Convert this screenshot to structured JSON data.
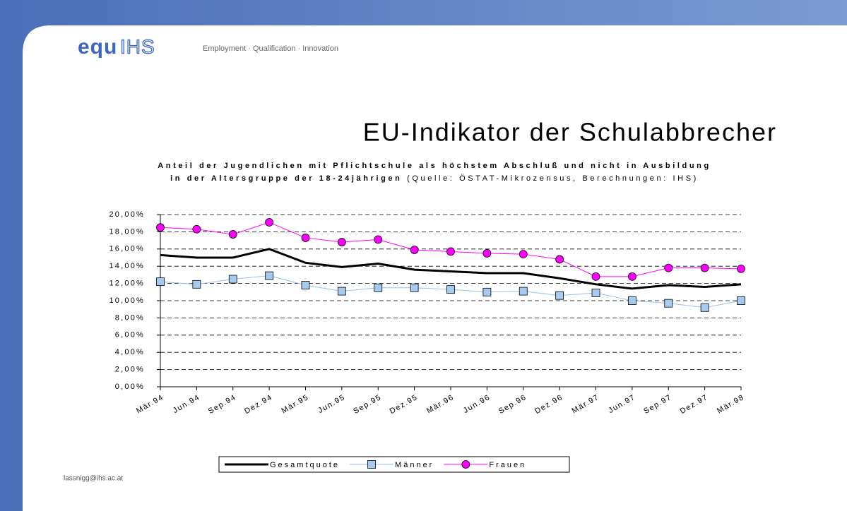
{
  "header": {
    "logo_a": "equ",
    "logo_b": "IHS",
    "tagline": "Employment · Qualification · Innovation"
  },
  "heading": "EU-Indikator der Schulabbrecher",
  "footer": "lassnigg@ihs.ac.at",
  "chart_data": {
    "type": "line",
    "title": "Anteil der Jugendlichen mit Pflichtschule als höchstem Abschluß und nicht in Ausbildung in der Altersgruppe der 18-24jährigen",
    "source": "(Quelle: ÖSTAT-Mikrozensus, Berechnungen: IHS)",
    "categories": [
      "Mär.94",
      "Jun.94",
      "Sep.94",
      "Dez.94",
      "Mär.95",
      "Jun.95",
      "Sep.95",
      "Dez.95",
      "Mär.96",
      "Jun.96",
      "Sep.96",
      "Dez.96",
      "Mär.97",
      "Jun.97",
      "Sep.97",
      "Dez.97",
      "Mär.98"
    ],
    "series": [
      {
        "name": "Gesamtquote",
        "color": "#000000",
        "marker": "none",
        "line_width": 3,
        "values": [
          15.3,
          15.0,
          15.0,
          16.0,
          14.4,
          13.9,
          14.3,
          13.6,
          13.4,
          13.2,
          13.2,
          12.6,
          11.9,
          11.4,
          11.8,
          11.6,
          11.9
        ]
      },
      {
        "name": "Männer",
        "color": "#9dbde6",
        "marker": "square",
        "marker_color": "#a6caf0",
        "line_width": 1,
        "values": [
          12.2,
          11.9,
          12.5,
          12.9,
          11.8,
          11.1,
          11.5,
          11.5,
          11.3,
          11.0,
          11.1,
          10.6,
          10.9,
          10.0,
          9.7,
          9.2,
          10.0
        ]
      },
      {
        "name": "Frauen",
        "color": "#ff00ff",
        "marker": "circle",
        "marker_color": "#ff00ff",
        "line_width": 1,
        "values": [
          18.5,
          18.3,
          17.7,
          19.1,
          17.3,
          16.8,
          17.1,
          15.9,
          15.7,
          15.5,
          15.4,
          14.8,
          12.8,
          12.8,
          13.8,
          13.8,
          13.7
        ]
      }
    ],
    "ylim": [
      0,
      20
    ],
    "yticks": [
      {
        "value": 0,
        "label": "0,00%"
      },
      {
        "value": 2,
        "label": "2,00%"
      },
      {
        "value": 4,
        "label": "4,00%"
      },
      {
        "value": 6,
        "label": "6,00%"
      },
      {
        "value": 8,
        "label": "8,00%"
      },
      {
        "value": 10,
        "label": "10,00%"
      },
      {
        "value": 12,
        "label": "12,00%"
      },
      {
        "value": 14,
        "label": "14,00%"
      },
      {
        "value": 16,
        "label": "16,00%"
      },
      {
        "value": 18,
        "label": "18,00%"
      },
      {
        "value": 20,
        "label": "20,00%"
      }
    ],
    "grid": true,
    "legend": "bottom"
  }
}
